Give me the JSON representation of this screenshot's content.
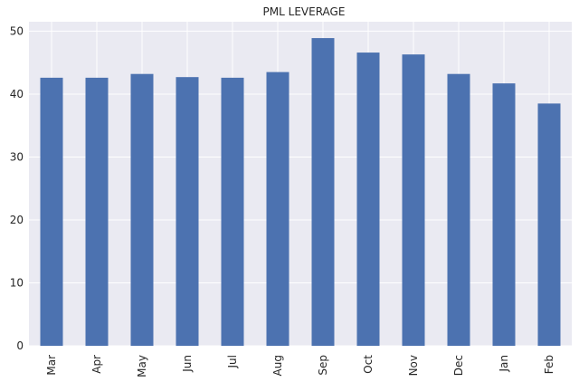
{
  "chart_data": {
    "type": "bar",
    "title": "PML LEVERAGE",
    "xlabel": "",
    "ylabel": "",
    "categories": [
      "Mar",
      "Apr",
      "May",
      "Jun",
      "Jul",
      "Aug",
      "Sep",
      "Oct",
      "Nov",
      "Dec",
      "Jan",
      "Feb"
    ],
    "values": [
      42.6,
      42.6,
      43.2,
      42.7,
      42.6,
      43.5,
      48.9,
      46.6,
      46.3,
      43.2,
      41.7,
      38.5
    ],
    "ylim": [
      0,
      51.5
    ],
    "yticks": [
      0,
      10,
      20,
      30,
      40,
      50
    ],
    "grid": true,
    "colors": {
      "bar": "#4c72b0",
      "plot_background": "#eaeaf2",
      "grid": "#ffffff"
    }
  }
}
